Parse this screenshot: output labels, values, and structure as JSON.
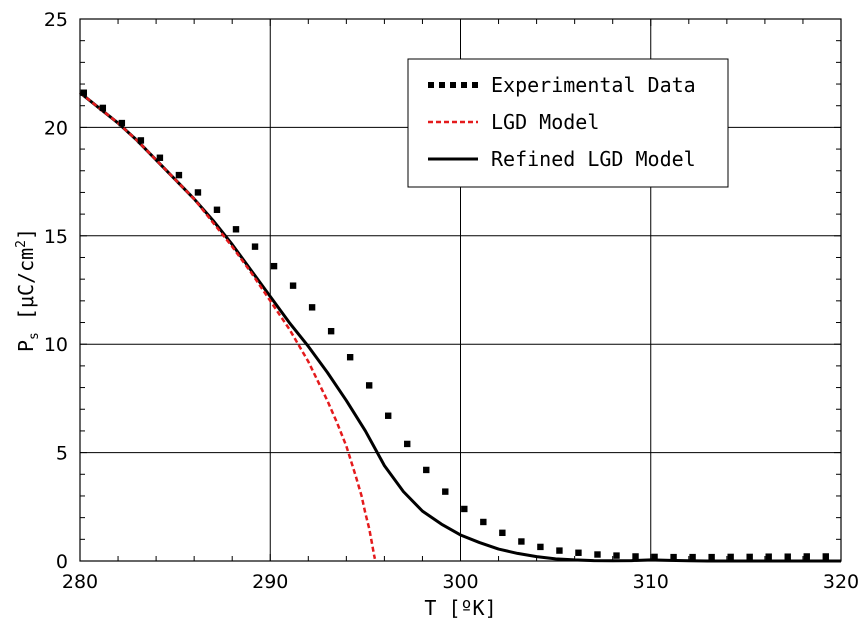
{
  "chart_data": {
    "type": "line",
    "xlabel": "T [ºK]",
    "ylabel_main": "P",
    "ylabel_sub": "s",
    "ylabel_rest": " [μC/cm",
    "ylabel_sup": "2",
    "ylabel_end": "]",
    "xlim": [
      280,
      320
    ],
    "ylim": [
      0,
      25
    ],
    "xticks": [
      280,
      290,
      300,
      310,
      320
    ],
    "yticks": [
      0,
      5,
      10,
      15,
      20,
      25
    ],
    "grid": true,
    "legend_position": "top-right",
    "series": [
      {
        "name": "Experimental Data",
        "style": "dotted",
        "color": "#000000",
        "x": [
          280.2,
          281.2,
          282.2,
          283.2,
          284.2,
          285.2,
          286.2,
          287.2,
          288.2,
          289.2,
          290.2,
          291.2,
          292.2,
          293.2,
          294.2,
          295.2,
          296.2,
          297.2,
          298.2,
          299.2,
          300.2,
          301.2,
          302.2,
          303.2,
          304.2,
          305.2,
          306.2,
          307.2,
          308.2,
          309.2,
          310.2,
          311.2,
          312.2,
          313.2,
          314.2,
          315.2,
          316.2,
          317.2,
          318.2,
          319.2
        ],
        "y": [
          21.6,
          20.9,
          20.2,
          19.4,
          18.6,
          17.8,
          17.0,
          16.2,
          15.3,
          14.5,
          13.6,
          12.7,
          11.7,
          10.6,
          9.4,
          8.1,
          6.7,
          5.4,
          4.2,
          3.2,
          2.4,
          1.8,
          1.3,
          0.9,
          0.65,
          0.48,
          0.38,
          0.3,
          0.25,
          0.21,
          0.19,
          0.18,
          0.18,
          0.18,
          0.19,
          0.19,
          0.2,
          0.2,
          0.21,
          0.21
        ]
      },
      {
        "name": "LGD Model",
        "style": "dashed",
        "color": "#e41a1c",
        "x": [
          280,
          281,
          282,
          283,
          284,
          285,
          286,
          287,
          288,
          289,
          290,
          291,
          292,
          292.5,
          293,
          293.5,
          294,
          294.5,
          294.8,
          295.0,
          295.2,
          295.35,
          295.45,
          295.5
        ],
        "y": [
          21.6,
          20.9,
          20.2,
          19.4,
          18.5,
          17.6,
          16.7,
          15.6,
          14.5,
          13.3,
          12.0,
          10.7,
          9.2,
          8.3,
          7.4,
          6.4,
          5.3,
          3.9,
          3.0,
          2.2,
          1.5,
          0.8,
          0.3,
          0.1
        ]
      },
      {
        "name": "Refined LGD Model",
        "style": "solid",
        "color": "#000000",
        "x": [
          280,
          281,
          282,
          283,
          284,
          285,
          286,
          287,
          288,
          289,
          290,
          291,
          292,
          293,
          294,
          295,
          295.5,
          296,
          297,
          298,
          299,
          300,
          301,
          302,
          303,
          304,
          305,
          306,
          307,
          308,
          309,
          310,
          311,
          312,
          313,
          314,
          315,
          316,
          317,
          318,
          319,
          320
        ],
        "y": [
          21.6,
          20.9,
          20.2,
          19.4,
          18.5,
          17.6,
          16.7,
          15.7,
          14.6,
          13.4,
          12.2,
          11.0,
          9.9,
          8.7,
          7.4,
          6.0,
          5.2,
          4.4,
          3.2,
          2.3,
          1.7,
          1.2,
          0.85,
          0.55,
          0.35,
          0.2,
          0.1,
          0.05,
          0.02,
          0.01,
          0.02,
          0.05,
          0.03,
          0.01,
          0.0,
          0.0,
          0.0,
          0.0,
          0.0,
          0.0,
          0.0,
          0.0
        ]
      }
    ]
  }
}
